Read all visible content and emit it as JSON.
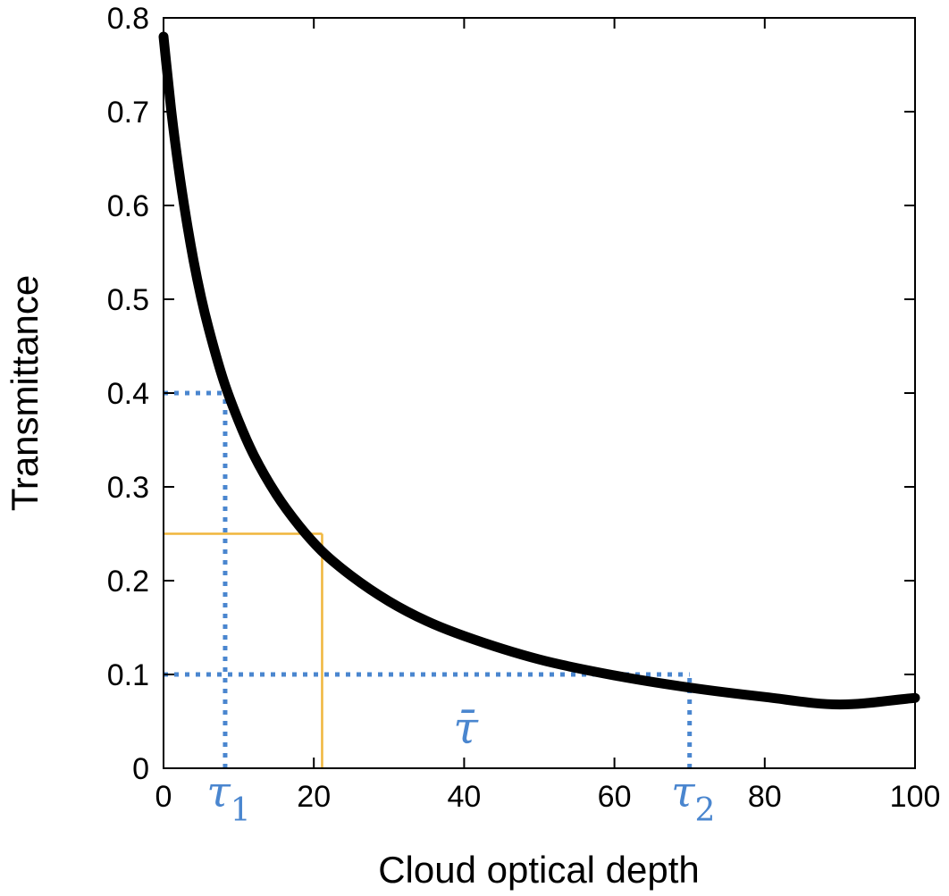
{
  "chart_data": {
    "type": "line",
    "xlabel": "Cloud optical depth",
    "ylabel": "Transmittance",
    "xlim": [
      0,
      100
    ],
    "ylim": [
      0,
      0.8
    ],
    "x_ticks": [
      "0",
      "20",
      "40",
      "60",
      "80",
      "100"
    ],
    "x_tick_values": [
      0,
      20,
      40,
      60,
      80,
      100
    ],
    "y_ticks": [
      "0",
      "0.1",
      "0.2",
      "0.3",
      "0.4",
      "0.5",
      "0.6",
      "0.7",
      "0.8"
    ],
    "y_tick_values": [
      0,
      0.1,
      0.2,
      0.3,
      0.4,
      0.5,
      0.6,
      0.7,
      0.8
    ],
    "grid": false,
    "series": [
      {
        "color": "#000000",
        "x": [
          0,
          1,
          2,
          3,
          4,
          5,
          6,
          8,
          10,
          12,
          15,
          18,
          21,
          25,
          30,
          35,
          40,
          50,
          60,
          70,
          80,
          90,
          100
        ],
        "y": [
          0.78,
          0.703,
          0.64,
          0.587,
          0.541,
          0.502,
          0.469,
          0.413,
          0.37,
          0.334,
          0.292,
          0.259,
          0.232,
          0.205,
          0.178,
          0.157,
          0.141,
          0.116,
          0.099,
          0.086,
          0.076,
          0.068,
          0.075
        ]
      }
    ],
    "annotations": [
      {
        "name": "tau-1",
        "symbol": "τ",
        "subscript": "1",
        "x": 8.2,
        "y": 0.4,
        "color": "#4a86cf",
        "style": "dotted"
      },
      {
        "name": "tau-2",
        "symbol": "τ",
        "subscript": "2",
        "x": 70,
        "y": 0.1,
        "color": "#4a86cf",
        "style": "dotted"
      },
      {
        "name": "tau-bar",
        "symbol": "τ̄",
        "x": 21.1,
        "y": 0.25,
        "color": "#f0b63c",
        "style": "solid",
        "label_x": 40.2,
        "label_y": 0.035
      }
    ]
  }
}
